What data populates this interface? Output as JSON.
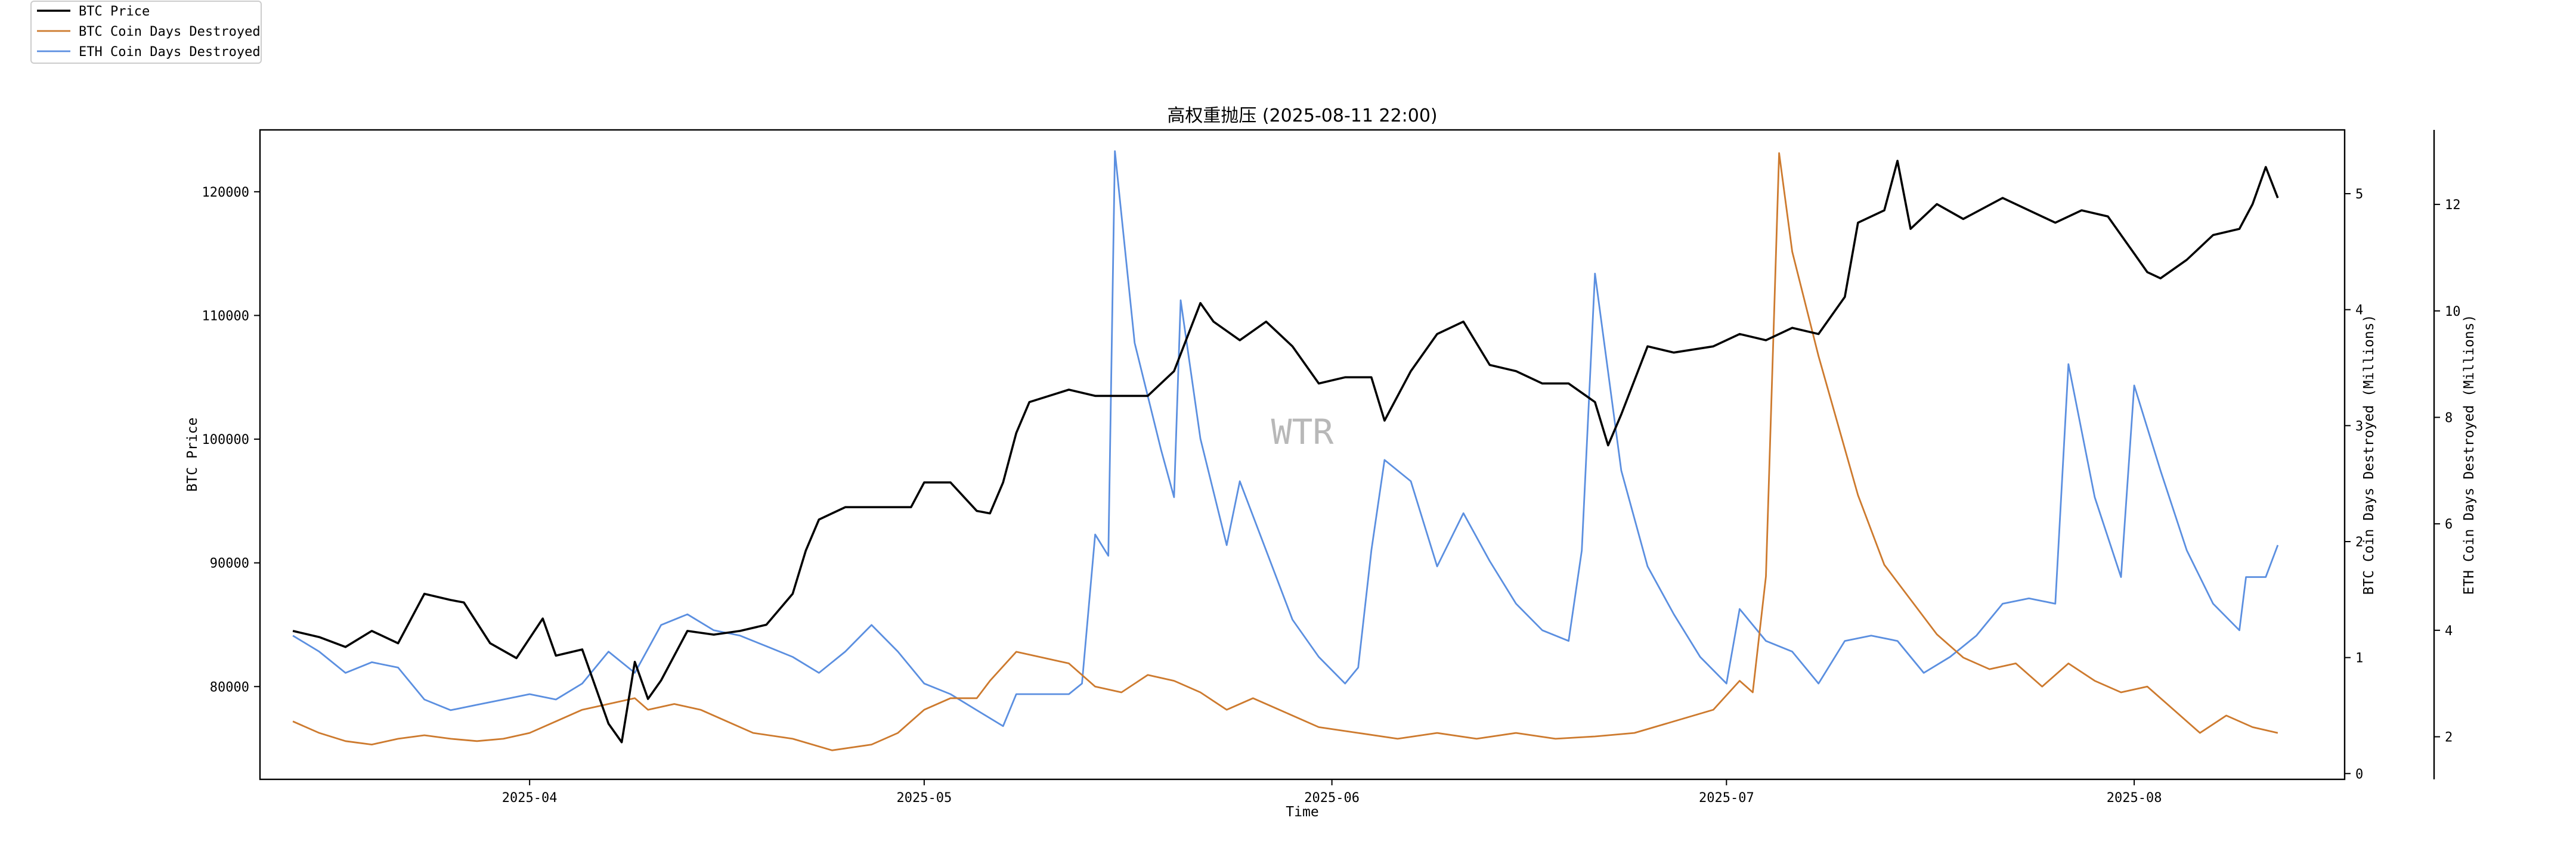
{
  "chart_data": {
    "type": "line",
    "title": "高权重抛压 (2025-08-11 22:00)",
    "xlabel": "Time",
    "watermark": "WTR",
    "legend_position": "top-left",
    "x_range": [
      "2025-03-14",
      "2025-08-11"
    ],
    "x_ticks": [
      "2025-04",
      "2025-05",
      "2025-06",
      "2025-07",
      "2025-08"
    ],
    "axes": [
      {
        "id": "btc_price",
        "label": "BTC Price",
        "side": "left",
        "range": [
          72500,
          125000
        ],
        "ticks": [
          80000,
          90000,
          100000,
          110000,
          120000
        ]
      },
      {
        "id": "btc_cdd",
        "label": "BTC Coin Days Destroyed (Millions)",
        "side": "right",
        "range": [
          -0.05,
          5.55
        ],
        "ticks": [
          0,
          1,
          2,
          3,
          4,
          5
        ]
      },
      {
        "id": "eth_cdd",
        "label": "ETH Coin Days Destroyed (Millions)",
        "side": "right-outer",
        "range": [
          1.2,
          13.4
        ],
        "ticks": [
          2,
          4,
          6,
          8,
          10,
          12
        ]
      }
    ],
    "series": [
      {
        "name": "BTC Price",
        "axis": "btc_price",
        "color": "#000000",
        "points": [
          [
            "2025-03-14",
            84500
          ],
          [
            "2025-03-16",
            84000
          ],
          [
            "2025-03-18",
            83200
          ],
          [
            "2025-03-20",
            84500
          ],
          [
            "2025-03-22",
            83500
          ],
          [
            "2025-03-24",
            87500
          ],
          [
            "2025-03-26",
            87000
          ],
          [
            "2025-03-27",
            86800
          ],
          [
            "2025-03-29",
            83500
          ],
          [
            "2025-03-31",
            82300
          ],
          [
            "2025-04-02",
            85500
          ],
          [
            "2025-04-03",
            82500
          ],
          [
            "2025-04-05",
            83000
          ],
          [
            "2025-04-07",
            77000
          ],
          [
            "2025-04-08",
            75500
          ],
          [
            "2025-04-09",
            82000
          ],
          [
            "2025-04-10",
            79000
          ],
          [
            "2025-04-11",
            80500
          ],
          [
            "2025-04-13",
            84500
          ],
          [
            "2025-04-15",
            84200
          ],
          [
            "2025-04-17",
            84500
          ],
          [
            "2025-04-19",
            85000
          ],
          [
            "2025-04-21",
            87500
          ],
          [
            "2025-04-22",
            91000
          ],
          [
            "2025-04-23",
            93500
          ],
          [
            "2025-04-25",
            94500
          ],
          [
            "2025-04-28",
            94500
          ],
          [
            "2025-04-30",
            94500
          ],
          [
            "2025-05-01",
            96500
          ],
          [
            "2025-05-03",
            96500
          ],
          [
            "2025-05-05",
            94200
          ],
          [
            "2025-05-06",
            94000
          ],
          [
            "2025-05-07",
            96500
          ],
          [
            "2025-05-08",
            100500
          ],
          [
            "2025-05-09",
            103000
          ],
          [
            "2025-05-12",
            104000
          ],
          [
            "2025-05-14",
            103500
          ],
          [
            "2025-05-16",
            103500
          ],
          [
            "2025-05-18",
            103500
          ],
          [
            "2025-05-20",
            105500
          ],
          [
            "2025-05-22",
            111000
          ],
          [
            "2025-05-23",
            109500
          ],
          [
            "2025-05-25",
            108000
          ],
          [
            "2025-05-27",
            109500
          ],
          [
            "2025-05-29",
            107500
          ],
          [
            "2025-05-31",
            104500
          ],
          [
            "2025-06-02",
            105000
          ],
          [
            "2025-06-04",
            105000
          ],
          [
            "2025-06-05",
            101500
          ],
          [
            "2025-06-07",
            105500
          ],
          [
            "2025-06-09",
            108500
          ],
          [
            "2025-06-11",
            109500
          ],
          [
            "2025-06-13",
            106000
          ],
          [
            "2025-06-15",
            105500
          ],
          [
            "2025-06-17",
            104500
          ],
          [
            "2025-06-19",
            104500
          ],
          [
            "2025-06-21",
            103000
          ],
          [
            "2025-06-22",
            99500
          ],
          [
            "2025-06-23",
            102000
          ],
          [
            "2025-06-25",
            107500
          ],
          [
            "2025-06-27",
            107000
          ],
          [
            "2025-06-30",
            107500
          ],
          [
            "2025-07-02",
            108500
          ],
          [
            "2025-07-04",
            108000
          ],
          [
            "2025-07-06",
            109000
          ],
          [
            "2025-07-08",
            108500
          ],
          [
            "2025-07-10",
            111500
          ],
          [
            "2025-07-11",
            117500
          ],
          [
            "2025-07-13",
            118500
          ],
          [
            "2025-07-14",
            122500
          ],
          [
            "2025-07-15",
            117000
          ],
          [
            "2025-07-17",
            119000
          ],
          [
            "2025-07-19",
            117800
          ],
          [
            "2025-07-22",
            119500
          ],
          [
            "2025-07-24",
            118500
          ],
          [
            "2025-07-26",
            117500
          ],
          [
            "2025-07-28",
            118500
          ],
          [
            "2025-07-30",
            118000
          ],
          [
            "2025-08-01",
            115000
          ],
          [
            "2025-08-02",
            113500
          ],
          [
            "2025-08-03",
            113000
          ],
          [
            "2025-08-05",
            114500
          ],
          [
            "2025-08-07",
            116500
          ],
          [
            "2025-08-09",
            117000
          ],
          [
            "2025-08-10",
            119000
          ],
          [
            "2025-08-11",
            122000
          ],
          [
            "2025-08-11T22:00",
            119500
          ]
        ]
      },
      {
        "name": "BTC Coin Days Destroyed",
        "axis": "btc_cdd",
        "color": "#cd7a2e",
        "points": [
          [
            "2025-03-14",
            0.45
          ],
          [
            "2025-03-16",
            0.35
          ],
          [
            "2025-03-18",
            0.28
          ],
          [
            "2025-03-20",
            0.25
          ],
          [
            "2025-03-22",
            0.3
          ],
          [
            "2025-03-24",
            0.33
          ],
          [
            "2025-03-26",
            0.3
          ],
          [
            "2025-03-28",
            0.28
          ],
          [
            "2025-03-30",
            0.3
          ],
          [
            "2025-04-01",
            0.35
          ],
          [
            "2025-04-03",
            0.45
          ],
          [
            "2025-04-05",
            0.55
          ],
          [
            "2025-04-07",
            0.6
          ],
          [
            "2025-04-09",
            0.65
          ],
          [
            "2025-04-10",
            0.55
          ],
          [
            "2025-04-12",
            0.6
          ],
          [
            "2025-04-14",
            0.55
          ],
          [
            "2025-04-16",
            0.45
          ],
          [
            "2025-04-18",
            0.35
          ],
          [
            "2025-04-21",
            0.3
          ],
          [
            "2025-04-24",
            0.2
          ],
          [
            "2025-04-27",
            0.25
          ],
          [
            "2025-04-29",
            0.35
          ],
          [
            "2025-05-01",
            0.55
          ],
          [
            "2025-05-03",
            0.65
          ],
          [
            "2025-05-05",
            0.65
          ],
          [
            "2025-05-06",
            0.8
          ],
          [
            "2025-05-08",
            1.05
          ],
          [
            "2025-05-10",
            1.0
          ],
          [
            "2025-05-12",
            0.95
          ],
          [
            "2025-05-14",
            0.75
          ],
          [
            "2025-05-16",
            0.7
          ],
          [
            "2025-05-18",
            0.85
          ],
          [
            "2025-05-20",
            0.8
          ],
          [
            "2025-05-22",
            0.7
          ],
          [
            "2025-05-24",
            0.55
          ],
          [
            "2025-05-26",
            0.65
          ],
          [
            "2025-05-28",
            0.55
          ],
          [
            "2025-05-31",
            0.4
          ],
          [
            "2025-06-03",
            0.35
          ],
          [
            "2025-06-06",
            0.3
          ],
          [
            "2025-06-09",
            0.35
          ],
          [
            "2025-06-12",
            0.3
          ],
          [
            "2025-06-15",
            0.35
          ],
          [
            "2025-06-18",
            0.3
          ],
          [
            "2025-06-21",
            0.32
          ],
          [
            "2025-06-24",
            0.35
          ],
          [
            "2025-06-27",
            0.45
          ],
          [
            "2025-06-30",
            0.55
          ],
          [
            "2025-07-02",
            0.8
          ],
          [
            "2025-07-03",
            0.7
          ],
          [
            "2025-07-04",
            1.7
          ],
          [
            "2025-07-05",
            5.35
          ],
          [
            "2025-07-06",
            4.5
          ],
          [
            "2025-07-08",
            3.6
          ],
          [
            "2025-07-10",
            2.8
          ],
          [
            "2025-07-11",
            2.4
          ],
          [
            "2025-07-13",
            1.8
          ],
          [
            "2025-07-15",
            1.5
          ],
          [
            "2025-07-17",
            1.2
          ],
          [
            "2025-07-19",
            1.0
          ],
          [
            "2025-07-21",
            0.9
          ],
          [
            "2025-07-23",
            0.95
          ],
          [
            "2025-07-25",
            0.75
          ],
          [
            "2025-07-27",
            0.95
          ],
          [
            "2025-07-29",
            0.8
          ],
          [
            "2025-07-31",
            0.7
          ],
          [
            "2025-08-02",
            0.75
          ],
          [
            "2025-08-04",
            0.55
          ],
          [
            "2025-08-06",
            0.35
          ],
          [
            "2025-08-08",
            0.5
          ],
          [
            "2025-08-10",
            0.4
          ],
          [
            "2025-08-11T22:00",
            0.35
          ]
        ]
      },
      {
        "name": "ETH Coin Days Destroyed",
        "axis": "eth_cdd",
        "color": "#5b8fe0",
        "points": [
          [
            "2025-03-14",
            3.9
          ],
          [
            "2025-03-16",
            3.6
          ],
          [
            "2025-03-18",
            3.2
          ],
          [
            "2025-03-20",
            3.4
          ],
          [
            "2025-03-22",
            3.3
          ],
          [
            "2025-03-24",
            2.7
          ],
          [
            "2025-03-26",
            2.5
          ],
          [
            "2025-03-28",
            2.6
          ],
          [
            "2025-03-30",
            2.7
          ],
          [
            "2025-04-01",
            2.8
          ],
          [
            "2025-04-03",
            2.7
          ],
          [
            "2025-04-05",
            3.0
          ],
          [
            "2025-04-07",
            3.6
          ],
          [
            "2025-04-09",
            3.2
          ],
          [
            "2025-04-11",
            4.1
          ],
          [
            "2025-04-13",
            4.3
          ],
          [
            "2025-04-15",
            4.0
          ],
          [
            "2025-04-17",
            3.9
          ],
          [
            "2025-04-19",
            3.7
          ],
          [
            "2025-04-21",
            3.5
          ],
          [
            "2025-04-23",
            3.2
          ],
          [
            "2025-04-25",
            3.6
          ],
          [
            "2025-04-27",
            4.1
          ],
          [
            "2025-04-29",
            3.6
          ],
          [
            "2025-05-01",
            3.0
          ],
          [
            "2025-05-03",
            2.8
          ],
          [
            "2025-05-05",
            2.5
          ],
          [
            "2025-05-07",
            2.2
          ],
          [
            "2025-05-08",
            2.8
          ],
          [
            "2025-05-10",
            2.8
          ],
          [
            "2025-05-12",
            2.8
          ],
          [
            "2025-05-13",
            3.0
          ],
          [
            "2025-05-14",
            5.8
          ],
          [
            "2025-05-15",
            5.4
          ],
          [
            "2025-05-15T12:00",
            13.0
          ],
          [
            "2025-05-17",
            9.4
          ],
          [
            "2025-05-19",
            7.4
          ],
          [
            "2025-05-20",
            6.5
          ],
          [
            "2025-05-20T12:00",
            10.2
          ],
          [
            "2025-05-22",
            7.6
          ],
          [
            "2025-05-24",
            5.6
          ],
          [
            "2025-05-25",
            6.8
          ],
          [
            "2025-05-27",
            5.5
          ],
          [
            "2025-05-29",
            4.2
          ],
          [
            "2025-05-31",
            3.5
          ],
          [
            "2025-06-02",
            3.0
          ],
          [
            "2025-06-03",
            3.3
          ],
          [
            "2025-06-04",
            5.5
          ],
          [
            "2025-06-05",
            7.2
          ],
          [
            "2025-06-07",
            6.8
          ],
          [
            "2025-06-09",
            5.2
          ],
          [
            "2025-06-11",
            6.2
          ],
          [
            "2025-06-13",
            5.3
          ],
          [
            "2025-06-15",
            4.5
          ],
          [
            "2025-06-17",
            4.0
          ],
          [
            "2025-06-19",
            3.8
          ],
          [
            "2025-06-20",
            5.5
          ],
          [
            "2025-06-21",
            10.7
          ],
          [
            "2025-06-23",
            7.0
          ],
          [
            "2025-06-25",
            5.2
          ],
          [
            "2025-06-27",
            4.3
          ],
          [
            "2025-06-29",
            3.5
          ],
          [
            "2025-07-01",
            3.0
          ],
          [
            "2025-07-02",
            4.4
          ],
          [
            "2025-07-04",
            3.8
          ],
          [
            "2025-07-06",
            3.6
          ],
          [
            "2025-07-08",
            3.0
          ],
          [
            "2025-07-10",
            3.8
          ],
          [
            "2025-07-12",
            3.9
          ],
          [
            "2025-07-14",
            3.8
          ],
          [
            "2025-07-16",
            3.2
          ],
          [
            "2025-07-18",
            3.5
          ],
          [
            "2025-07-20",
            3.9
          ],
          [
            "2025-07-22",
            4.5
          ],
          [
            "2025-07-24",
            4.6
          ],
          [
            "2025-07-26",
            4.5
          ],
          [
            "2025-07-27",
            9.0
          ],
          [
            "2025-07-29",
            6.5
          ],
          [
            "2025-07-31",
            5.0
          ],
          [
            "2025-08-01",
            8.6
          ],
          [
            "2025-08-03",
            7.0
          ],
          [
            "2025-08-05",
            5.5
          ],
          [
            "2025-08-07",
            4.5
          ],
          [
            "2025-08-09",
            4.0
          ],
          [
            "2025-08-09T12:00",
            5.0
          ],
          [
            "2025-08-11",
            5.0
          ],
          [
            "2025-08-11T22:00",
            5.6
          ]
        ]
      }
    ]
  }
}
